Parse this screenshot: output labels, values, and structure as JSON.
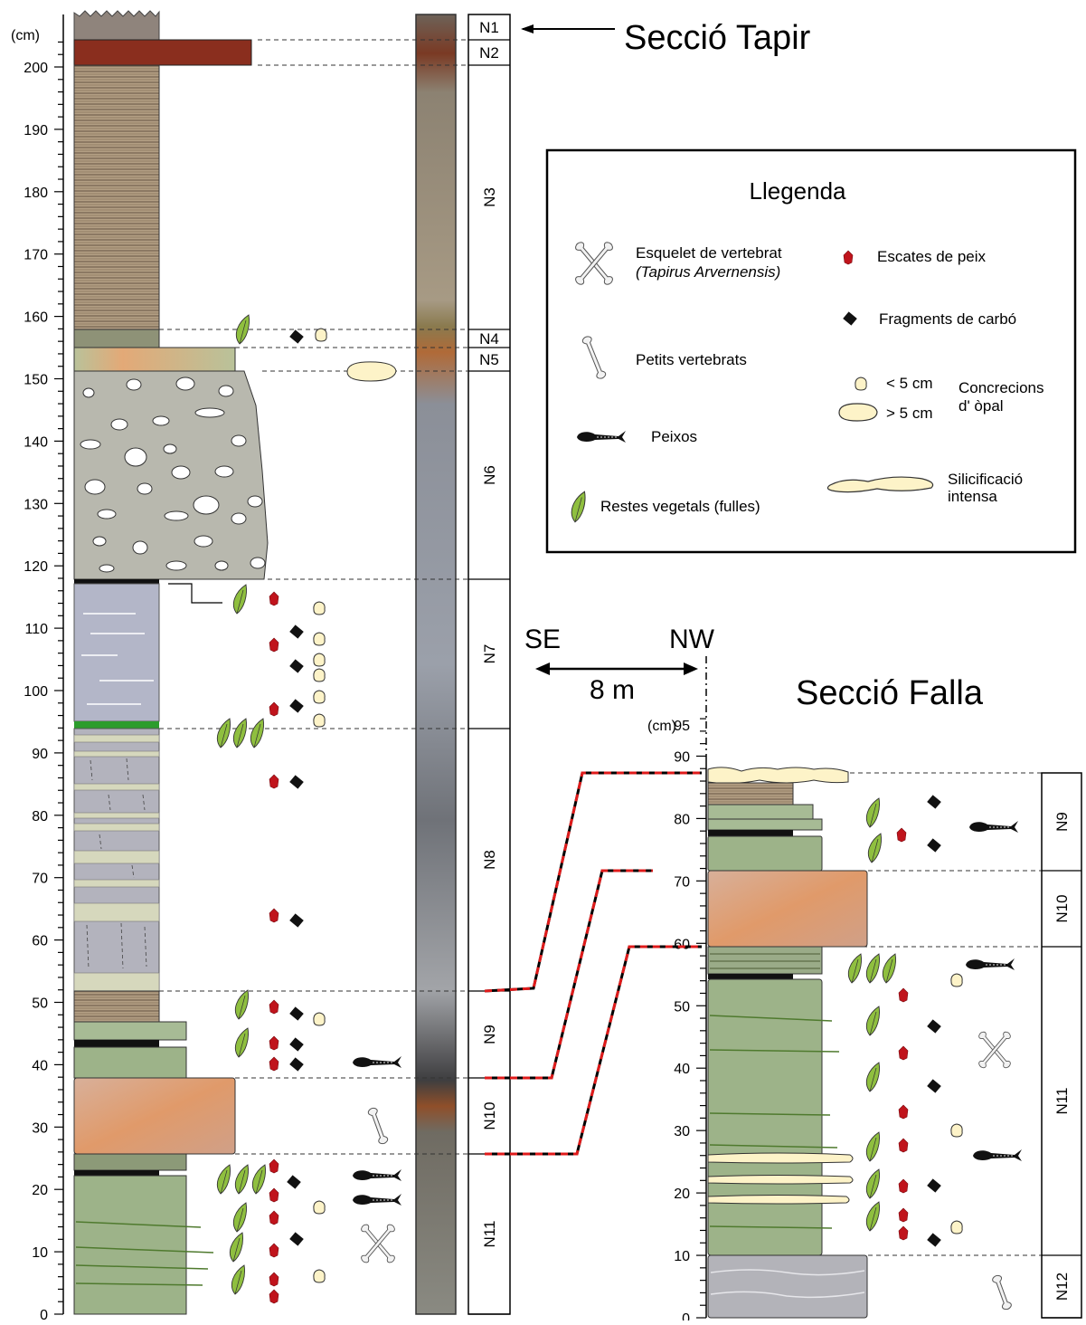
{
  "tapir": {
    "title": "Secció Tapir",
    "unit": "(cm)",
    "ticks": [
      0,
      10,
      20,
      30,
      40,
      50,
      60,
      70,
      80,
      90,
      100,
      110,
      120,
      130,
      140,
      150,
      160,
      170,
      180,
      190,
      200
    ],
    "units": [
      "N1",
      "N2",
      "N3",
      "N4",
      "N5",
      "N6",
      "N7",
      "N8",
      "N9",
      "N10",
      "N11"
    ]
  },
  "falla": {
    "title": "Secció Falla",
    "unit": "(cm)",
    "ticks": [
      0,
      10,
      20,
      30,
      40,
      50,
      60,
      70,
      80,
      90,
      95
    ],
    "units": [
      "N9",
      "N10",
      "N11",
      "N12"
    ]
  },
  "orientation": {
    "left": "SE",
    "right": "NW",
    "distance": "8 m"
  },
  "legend": {
    "title": "Llegenda",
    "vertebrate": "Esquelet de vertebrat",
    "vertebrate_species": "(Tapirus Arvernensis)",
    "small_vertebrates": "Petits vertebrats",
    "fish": "Peixos",
    "plants": "Restes vegetals (fulles)",
    "fish_scales": "Escates de peix",
    "coal": "Fragments de carbó",
    "small_concretion": "< 5 cm",
    "large_concretion": "> 5 cm",
    "concretions_label_1": "Concrecions",
    "concretions_label_2": "d' òpal",
    "silicification_1": "Silicificació",
    "silicification_2": "intensa"
  },
  "colors": {
    "mudstone_gray": "#b5b5a8",
    "red_bed": "#8a2e1e",
    "laminated_brown": "#a8957a",
    "green_silt": "#9db389",
    "salmon": "#d4a184",
    "blue_gray": "#b3b6c8",
    "leaf_green": "#8fbf3f",
    "fish_scale_red": "#c0141c",
    "opal": "#fdf3c8",
    "correlation_red": "#e01b1b"
  }
}
